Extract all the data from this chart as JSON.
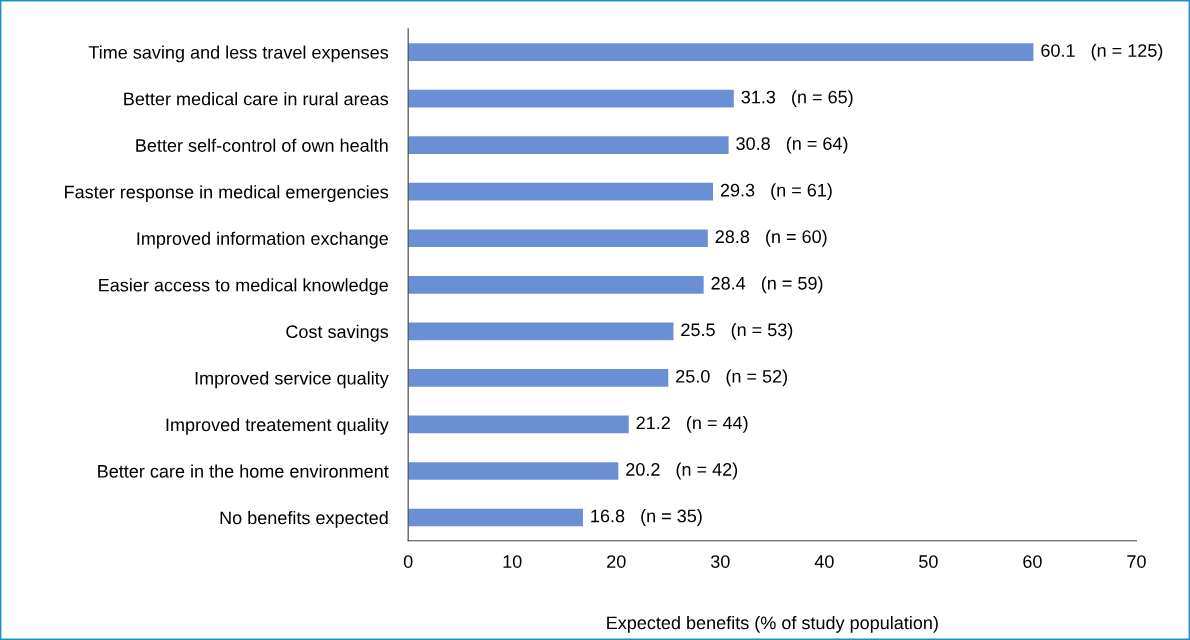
{
  "chart_data": {
    "type": "bar",
    "orientation": "horizontal",
    "xlabel": "Expected benefits (% of study population)",
    "categories": [
      "Time saving and less travel expenses",
      "Better medical care in rural areas",
      "Better self-control of own health",
      "Faster response in medical emergencies",
      "Improved information exchange",
      "Easier access to medical knowledge",
      "Cost savings",
      "Improved service quality",
      "Improved treatement quality",
      "Better care in the home environment",
      "No benefits expected"
    ],
    "values": [
      60.1,
      31.3,
      30.8,
      29.3,
      28.8,
      28.4,
      25.5,
      25.0,
      21.2,
      20.2,
      16.8
    ],
    "value_labels": [
      "60.1   (n = 125)",
      "31.3   (n = 65)",
      "30.8   (n = 64)",
      "29.3   (n = 61)",
      "28.8   (n = 60)",
      "28.4   (n = 59)",
      "25.5   (n = 53)",
      "25.0   (n = 52)",
      "21.2   (n = 44)",
      "20.2   (n = 42)",
      "16.8   (n = 35)"
    ],
    "color": "#6a8fd5",
    "xlim": [
      0,
      70
    ],
    "xticks": [
      0,
      10,
      20,
      30,
      40,
      50,
      60,
      70
    ],
    "grid": false,
    "legend": false
  }
}
